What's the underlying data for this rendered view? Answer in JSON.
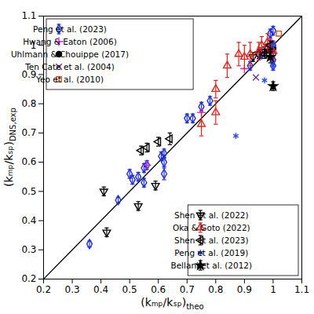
{
  "chart_data": {
    "type": "scatter",
    "x_label": "(kₘₚ/kₛₚ)theo",
    "y_label": "(kₘₚ/kₛₚ)DNS,exp",
    "xlim": [
      0.2,
      1.1
    ],
    "ylim": [
      0.2,
      1.1
    ],
    "xticks": [
      0.2,
      0.3,
      0.4,
      0.5,
      0.6,
      0.7,
      0.8,
      0.9,
      1,
      1.1
    ],
    "yticks": [
      0.2,
      0.3,
      0.4,
      0.5,
      0.6,
      0.7,
      0.8,
      0.9,
      1,
      1.1
    ],
    "grid": false,
    "legend": [
      "upper left",
      "lower right"
    ],
    "series": [
      {
        "type": "line",
        "color": "#000000",
        "line_style": "solid",
        "x": [
          0.2,
          1.1
        ],
        "values": [
          0.2,
          1.1
        ]
      },
      {
        "name": "Peng et al. (2023)",
        "color": "#1f2ed6",
        "marker": "diamond",
        "x": [
          0.36,
          0.46,
          0.5,
          0.51,
          0.53,
          0.55,
          0.55,
          0.56,
          0.61,
          0.62,
          0.62,
          0.62,
          0.7,
          0.72,
          0.75,
          0.78,
          0.92,
          0.96,
          0.98,
          0.99,
          1.0,
          1.0,
          1.0,
          1.0,
          1.0,
          0.95
        ],
        "values": [
          0.32,
          0.47,
          0.56,
          0.54,
          0.55,
          0.53,
          0.58,
          0.59,
          0.62,
          0.63,
          0.6,
          0.56,
          0.75,
          0.75,
          0.79,
          0.81,
          0.93,
          0.97,
          0.99,
          1.04,
          1.05,
          1.0,
          0.97,
          0.93,
          0.95,
          0.97
        ],
        "errors": [
          0.01,
          0.01,
          0.015,
          0.015,
          0.015,
          0.015,
          0.015,
          0.015,
          0.015,
          0.015,
          0.015,
          0.02,
          0.015,
          0.015,
          0.015,
          0.015,
          0.015,
          0.015,
          0.015,
          0.015,
          0.015,
          0.015,
          0.015,
          0.015,
          0.015,
          0.015
        ]
      },
      {
        "name": "Hwang & Eaton (2006)",
        "color": "#e020e0",
        "marker": "plus",
        "x": [
          0.56,
          0.75,
          0.9
        ],
        "values": [
          0.59,
          0.77,
          0.92
        ]
      },
      {
        "name": "Uhlmann & Chouippe (2017)",
        "color": "#000000",
        "marker": "circle",
        "x": [
          1.0,
          0.99
        ],
        "values": [
          0.99,
          0.98
        ]
      },
      {
        "name": "Ten Cate et al. (2004)",
        "color": "#7b2d8e",
        "marker": "times",
        "x": [
          0.94
        ],
        "values": [
          0.89
        ]
      },
      {
        "name": "Yeo et al. (2010)",
        "color": "#d95319",
        "marker": "square",
        "x": [
          1.02,
          0.99
        ],
        "values": [
          1.04,
          1.0
        ]
      },
      {
        "name": "Shen et al. (2022)",
        "color": "#000000",
        "marker": "triangle-down",
        "x": [
          0.41,
          0.42,
          0.53,
          0.59,
          0.93,
          0.95,
          0.97
        ],
        "values": [
          0.5,
          0.36,
          0.45,
          0.52,
          0.96,
          0.97,
          0.98
        ],
        "errors": [
          0.015,
          0.015,
          0.015,
          0.015,
          0.015,
          0.015,
          0.015
        ]
      },
      {
        "name": "Oka & Goto (2022)",
        "color": "#e8231c",
        "marker": "triangle",
        "x": [
          0.75,
          0.8,
          0.8,
          0.84,
          0.88,
          0.9,
          0.92,
          0.95,
          0.96,
          0.98,
          0.99,
          1.0
        ],
        "values": [
          0.73,
          0.85,
          0.77,
          0.93,
          0.97,
          0.96,
          0.97,
          0.98,
          1.0,
          1.01,
          0.99,
          0.98
        ],
        "errors": [
          0.04,
          0.03,
          0.04,
          0.04,
          0.04,
          0.04,
          0.04,
          0.03,
          0.03,
          0.03,
          0.03,
          0.03
        ]
      },
      {
        "name": "Shen et al. (2023)",
        "color": "#000000",
        "marker": "triangle-left",
        "x": [
          0.54,
          0.56,
          0.6,
          0.64,
          0.97,
          0.99
        ],
        "values": [
          0.64,
          0.65,
          0.67,
          0.68,
          0.97,
          1.0
        ],
        "errors": [
          0.015,
          0.015,
          0.015,
          0.02,
          0.015,
          0.015
        ]
      },
      {
        "name": "Peng et al. (2019)",
        "color": "#2a4ff0",
        "marker": "asterisk",
        "x": [
          0.87,
          0.97,
          1.0,
          1.0
        ],
        "values": [
          0.69,
          0.88,
          1.0,
          0.93
        ]
      },
      {
        "name": "Bellani et al. (2012)",
        "color": "#000000",
        "marker": "hexagram",
        "x": [
          1.0,
          0.99
        ],
        "values": [
          0.86,
          0.96
        ],
        "errors": [
          0.015,
          0.02
        ]
      }
    ]
  }
}
